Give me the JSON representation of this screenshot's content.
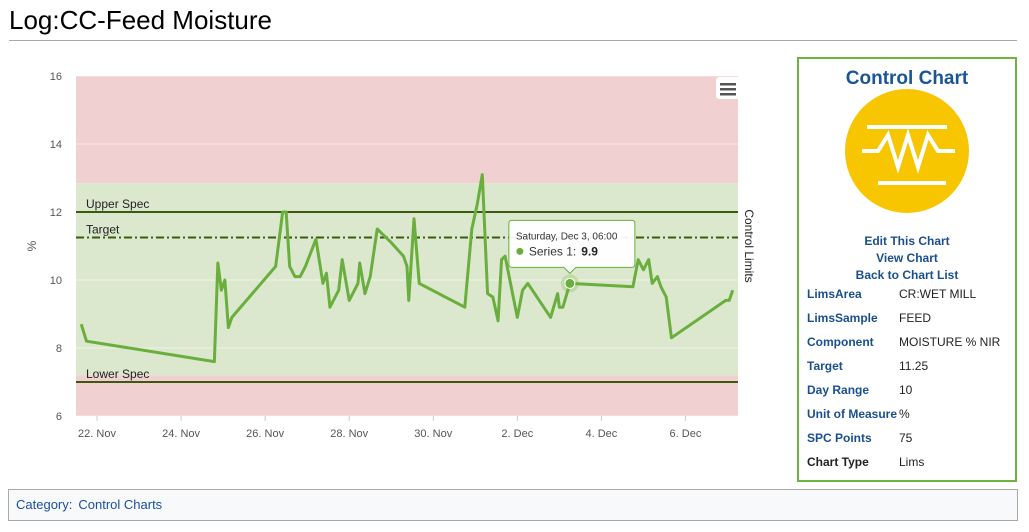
{
  "header": {
    "title": "Log:CC-Feed Moisture"
  },
  "chart_data": {
    "type": "line",
    "y_title": "%",
    "y2_title": "Control Limits",
    "x": [
      "Nov 21 15:00",
      "Nov 21 18:00",
      "Nov 24 19:00",
      "Nov 24 21:00",
      "Nov 24 23:00",
      "Nov 25 01:00",
      "Nov 25 03:00",
      "Nov 25 05:00",
      "Nov 26 06:00",
      "Nov 26 10:00",
      "Nov 26 12:00",
      "Nov 26 14:00",
      "Nov 26 17:00",
      "Nov 26 20:00",
      "Nov 26 23:00",
      "Nov 27 05:00",
      "Nov 27 09:00",
      "Nov 27 11:00",
      "Nov 27 13:00",
      "Nov 27 18:00",
      "Nov 27 20:00",
      "Nov 28 00:00",
      "Nov 28 05:00",
      "Nov 28 06:00",
      "Nov 28 09:00",
      "Nov 28 12:00",
      "Nov 28 16:00",
      "Nov 29 00:00",
      "Nov 29 07:00",
      "Nov 29 09:00",
      "Nov 29 10:00",
      "Nov 29 13:00",
      "Nov 29 16:00",
      "Nov 30 18:00",
      "Nov 30 22:00",
      "Dec 1 01:00",
      "Dec 1 04:00",
      "Dec 1 07:00",
      "Dec 1 10:00",
      "Dec 1 13:00",
      "Dec 1 15:00",
      "Dec 1 17:00",
      "Dec 2 00:00",
      "Dec 2 03:00",
      "Dec 2 06:00",
      "Dec 2 19:00",
      "Dec 2 23:00",
      "Dec 3 00:00",
      "Dec 3 02:00",
      "Dec 3 06:00",
      "Dec 4 18:00",
      "Dec 4 21:00",
      "Dec 5 00:00",
      "Dec 5 03:00",
      "Dec 5 05:00",
      "Dec 5 08:00",
      "Dec 5 10:00",
      "Dec 5 13:00",
      "Dec 5 16:00",
      "Dec 6 23:00",
      "Dec 7 01:00",
      "Dec 7 03:00"
    ],
    "series": [
      {
        "name": "Series 1",
        "color": "#6aaf3d",
        "values": [
          8.7,
          8.2,
          7.6,
          10.5,
          9.7,
          10.0,
          8.6,
          8.9,
          10.4,
          12.0,
          12.0,
          10.4,
          10.1,
          10.1,
          10.4,
          11.2,
          9.9,
          10.2,
          9.2,
          9.7,
          10.6,
          9.4,
          9.9,
          10.5,
          9.6,
          10.1,
          11.5,
          11.1,
          10.7,
          10.4,
          9.4,
          11.8,
          9.9,
          9.2,
          11.5,
          12.2,
          13.1,
          9.6,
          9.5,
          8.8,
          10.6,
          10.7,
          8.9,
          9.7,
          9.9,
          8.9,
          9.6,
          9.2,
          9.2,
          9.9,
          9.8,
          10.6,
          10.3,
          10.6,
          9.9,
          10.1,
          9.8,
          9.5,
          8.3,
          9.4,
          9.4,
          9.7
        ]
      }
    ],
    "xlim": [
      "Nov 21 12:00",
      "Dec 7 06:00"
    ],
    "xticks": [
      {
        "value": "Nov 22 00:00",
        "label": "22. Nov"
      },
      {
        "value": "Nov 24 00:00",
        "label": "24. Nov"
      },
      {
        "value": "Nov 26 00:00",
        "label": "26. Nov"
      },
      {
        "value": "Nov 28 00:00",
        "label": "28. Nov"
      },
      {
        "value": "Nov 30 00:00",
        "label": "30. Nov"
      },
      {
        "value": "Dec 2 00:00",
        "label": "2. Dec"
      },
      {
        "value": "Dec 4 00:00",
        "label": "4. Dec"
      },
      {
        "value": "Dec 6 00:00",
        "label": "6. Dec"
      }
    ],
    "ylim": [
      6,
      16
    ],
    "yticks": [
      6,
      8,
      10,
      12,
      14,
      16
    ],
    "grid": true,
    "plot_bands": [
      {
        "from": 12.85,
        "to": 16,
        "color": "#f0d0d0"
      },
      {
        "from": 7.2,
        "to": 12.85,
        "color": "#dbe8cd"
      },
      {
        "from": 6,
        "to": 7.2,
        "color": "#f0d0d0"
      }
    ],
    "plot_lines": [
      {
        "value": 12,
        "label": "Upper Spec",
        "color": "#3b5a10",
        "dash": "solid"
      },
      {
        "value": 11.25,
        "label": "Target",
        "color": "#3b5a10",
        "dash": "dashdot"
      },
      {
        "value": 7,
        "label": "Lower Spec",
        "color": "#3b5a10",
        "dash": "solid"
      }
    ],
    "tooltip": {
      "header": "Saturday, Dec 3, 06:00",
      "label": "Series 1:",
      "x": "Dec 3 06:00"
    }
  },
  "sidebar": {
    "title": "Control Chart",
    "links": [
      "Edit This Chart",
      "View Chart",
      "Back to Chart List"
    ],
    "rows": [
      {
        "label": "LimsArea",
        "value": "CR:WET MILL",
        "link": true
      },
      {
        "label": "LimsSample",
        "value": "FEED",
        "link": true
      },
      {
        "label": "Component",
        "value": "MOISTURE % NIR",
        "link": true
      },
      {
        "label": "Target",
        "value": "11.25",
        "link": true
      },
      {
        "label": "Day Range",
        "value": "10",
        "link": true
      },
      {
        "label": "Unit of Measure",
        "value": "%",
        "link": true
      },
      {
        "label": "SPC Points",
        "value": "75",
        "link": true
      },
      {
        "label": "Chart Type",
        "value": "Lims",
        "link": false
      }
    ]
  },
  "footer": {
    "label": "Category:",
    "link": "Control Charts"
  }
}
